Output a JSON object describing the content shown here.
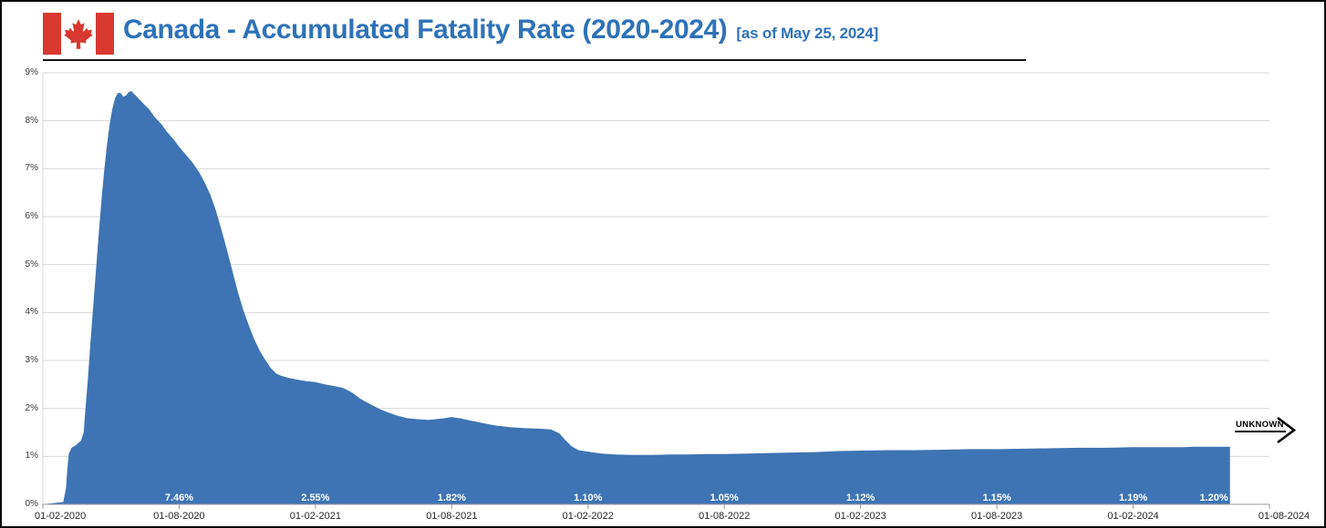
{
  "header": {
    "title": "Canada - Accumulated Fatality Rate (2020-2024)",
    "subtitle": "[as of May 25, 2024]"
  },
  "annotation": {
    "text": "UNKNOWN"
  },
  "colors": {
    "area": "#3E74B4",
    "title": "#2E72B8",
    "grid": "#D9D9D9",
    "axis": "#9A9A9A",
    "flag_red": "#D93830",
    "data_label": "#FFFFFF",
    "annotation": "#000000"
  },
  "chart_data": {
    "type": "area",
    "title": "Canada - Accumulated Fatality Rate (2020-2024)",
    "subtitle": "[as of May 25, 2024]",
    "series_name": "Accumulated fatality rate (%)",
    "x_unit": "tick-index units; ticks are 6 months apart starting at 01-02-2020",
    "x_tick_labels": [
      "01-02-2020",
      "01-08-2020",
      "01-02-2021",
      "01-08-2021",
      "01-02-2022",
      "01-08-2022",
      "01-02-2023",
      "01-08-2023",
      "01-02-2024",
      "01-08-2024"
    ],
    "y_tick_labels": [
      "0%",
      "1%",
      "2%",
      "3%",
      "4%",
      "5%",
      "6%",
      "7%",
      "8%",
      "9%"
    ],
    "ylim": [
      0,
      9
    ],
    "grid": "horizontal",
    "legend": "none",
    "area_color": "#3E74B4",
    "points": [
      [
        0,
        0
      ],
      [
        0.15,
        0.05
      ],
      [
        0.17,
        0.35
      ],
      [
        0.18,
        0.75
      ],
      [
        0.19,
        1.05
      ],
      [
        0.21,
        1.18
      ],
      [
        0.24,
        1.23
      ],
      [
        0.26,
        1.28
      ],
      [
        0.28,
        1.33
      ],
      [
        0.3,
        1.5
      ],
      [
        0.31,
        1.9
      ],
      [
        0.33,
        2.6
      ],
      [
        0.35,
        3.4
      ],
      [
        0.37,
        4.15
      ],
      [
        0.39,
        4.9
      ],
      [
        0.41,
        5.65
      ],
      [
        0.43,
        6.35
      ],
      [
        0.45,
        6.97
      ],
      [
        0.47,
        7.48
      ],
      [
        0.49,
        7.92
      ],
      [
        0.51,
        8.25
      ],
      [
        0.53,
        8.47
      ],
      [
        0.55,
        8.58
      ],
      [
        0.57,
        8.58
      ],
      [
        0.59,
        8.5
      ],
      [
        0.61,
        8.53
      ],
      [
        0.63,
        8.6
      ],
      [
        0.65,
        8.62
      ],
      [
        0.67,
        8.56
      ],
      [
        0.7,
        8.47
      ],
      [
        0.74,
        8.35
      ],
      [
        0.78,
        8.24
      ],
      [
        0.82,
        8.08
      ],
      [
        0.87,
        7.93
      ],
      [
        0.91,
        7.77
      ],
      [
        0.96,
        7.61
      ],
      [
        1,
        7.46
      ],
      [
        1.05,
        7.29
      ],
      [
        1.1,
        7.12
      ],
      [
        1.15,
        6.91
      ],
      [
        1.19,
        6.7
      ],
      [
        1.23,
        6.45
      ],
      [
        1.27,
        6.13
      ],
      [
        1.31,
        5.73
      ],
      [
        1.35,
        5.31
      ],
      [
        1.39,
        4.88
      ],
      [
        1.43,
        4.44
      ],
      [
        1.47,
        4.06
      ],
      [
        1.51,
        3.74
      ],
      [
        1.55,
        3.45
      ],
      [
        1.59,
        3.21
      ],
      [
        1.63,
        3.02
      ],
      [
        1.67,
        2.85
      ],
      [
        1.71,
        2.73
      ],
      [
        1.75,
        2.68
      ],
      [
        1.8,
        2.64
      ],
      [
        1.87,
        2.6
      ],
      [
        1.93,
        2.57
      ],
      [
        2,
        2.55
      ],
      [
        2.07,
        2.5
      ],
      [
        2.13,
        2.47
      ],
      [
        2.2,
        2.43
      ],
      [
        2.27,
        2.33
      ],
      [
        2.33,
        2.2
      ],
      [
        2.4,
        2.09
      ],
      [
        2.47,
        1.99
      ],
      [
        2.53,
        1.92
      ],
      [
        2.6,
        1.85
      ],
      [
        2.67,
        1.8
      ],
      [
        2.73,
        1.78
      ],
      [
        2.83,
        1.76
      ],
      [
        2.93,
        1.79
      ],
      [
        3,
        1.82
      ],
      [
        3.07,
        1.79
      ],
      [
        3.13,
        1.75
      ],
      [
        3.2,
        1.71
      ],
      [
        3.27,
        1.67
      ],
      [
        3.33,
        1.64
      ],
      [
        3.43,
        1.61
      ],
      [
        3.53,
        1.59
      ],
      [
        3.63,
        1.58
      ],
      [
        3.73,
        1.56
      ],
      [
        3.79,
        1.48
      ],
      [
        3.83,
        1.35
      ],
      [
        3.88,
        1.21
      ],
      [
        3.93,
        1.13
      ],
      [
        4,
        1.1
      ],
      [
        4.1,
        1.06
      ],
      [
        4.2,
        1.04
      ],
      [
        4.33,
        1.03
      ],
      [
        4.47,
        1.03
      ],
      [
        4.6,
        1.04
      ],
      [
        4.73,
        1.04
      ],
      [
        4.87,
        1.05
      ],
      [
        5,
        1.05
      ],
      [
        5.17,
        1.06
      ],
      [
        5.33,
        1.07
      ],
      [
        5.5,
        1.08
      ],
      [
        5.67,
        1.09
      ],
      [
        5.83,
        1.11
      ],
      [
        6,
        1.12
      ],
      [
        6.2,
        1.13
      ],
      [
        6.4,
        1.13
      ],
      [
        6.6,
        1.14
      ],
      [
        6.8,
        1.15
      ],
      [
        7,
        1.15
      ],
      [
        7.2,
        1.16
      ],
      [
        7.4,
        1.17
      ],
      [
        7.6,
        1.18
      ],
      [
        7.8,
        1.18
      ],
      [
        8,
        1.19
      ],
      [
        8.2,
        1.19
      ],
      [
        8.37,
        1.19
      ],
      [
        8.43,
        1.2
      ],
      [
        8.57,
        1.2
      ],
      [
        8.71,
        1.2
      ]
    ],
    "data_labels": [
      {
        "x": 1,
        "text": "7.46%"
      },
      {
        "x": 2,
        "text": "2.55%"
      },
      {
        "x": 3,
        "text": "1.82%"
      },
      {
        "x": 4,
        "text": "1.10%"
      },
      {
        "x": 5,
        "text": "1.05%"
      },
      {
        "x": 6,
        "text": "1.12%"
      },
      {
        "x": 7,
        "text": "1.15%"
      },
      {
        "x": 8,
        "text": "1.19%"
      },
      {
        "x": 8.71,
        "text": "1.20%",
        "align": "end"
      }
    ],
    "annotation": {
      "text": "UNKNOWN",
      "position": "right of the end of the area, with right-pointing arrow"
    }
  }
}
